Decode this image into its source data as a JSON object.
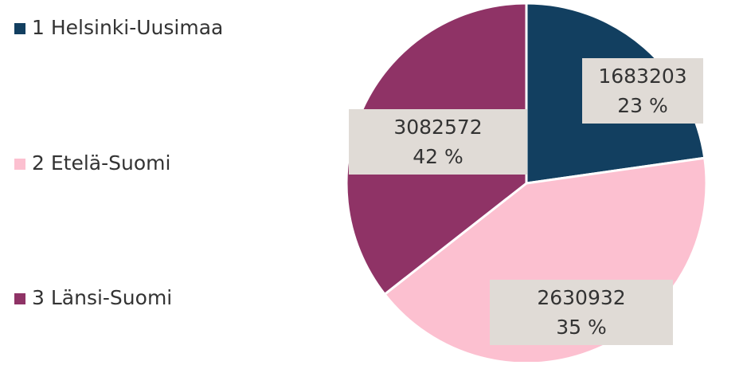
{
  "chart_data": {
    "type": "pie",
    "categories": [
      "1 Helsinki-Uusimaa",
      "2 Etelä-Suomi",
      "3 Länsi-Suomi"
    ],
    "values": [
      1683203,
      3082572,
      2630932
    ],
    "percents": [
      23,
      42,
      35
    ],
    "percent_labels": [
      "23 %",
      "42 %",
      "35 %"
    ],
    "colors": [
      "#123f60",
      "#fcc0d0",
      "#8f3366"
    ],
    "legend": "left"
  }
}
